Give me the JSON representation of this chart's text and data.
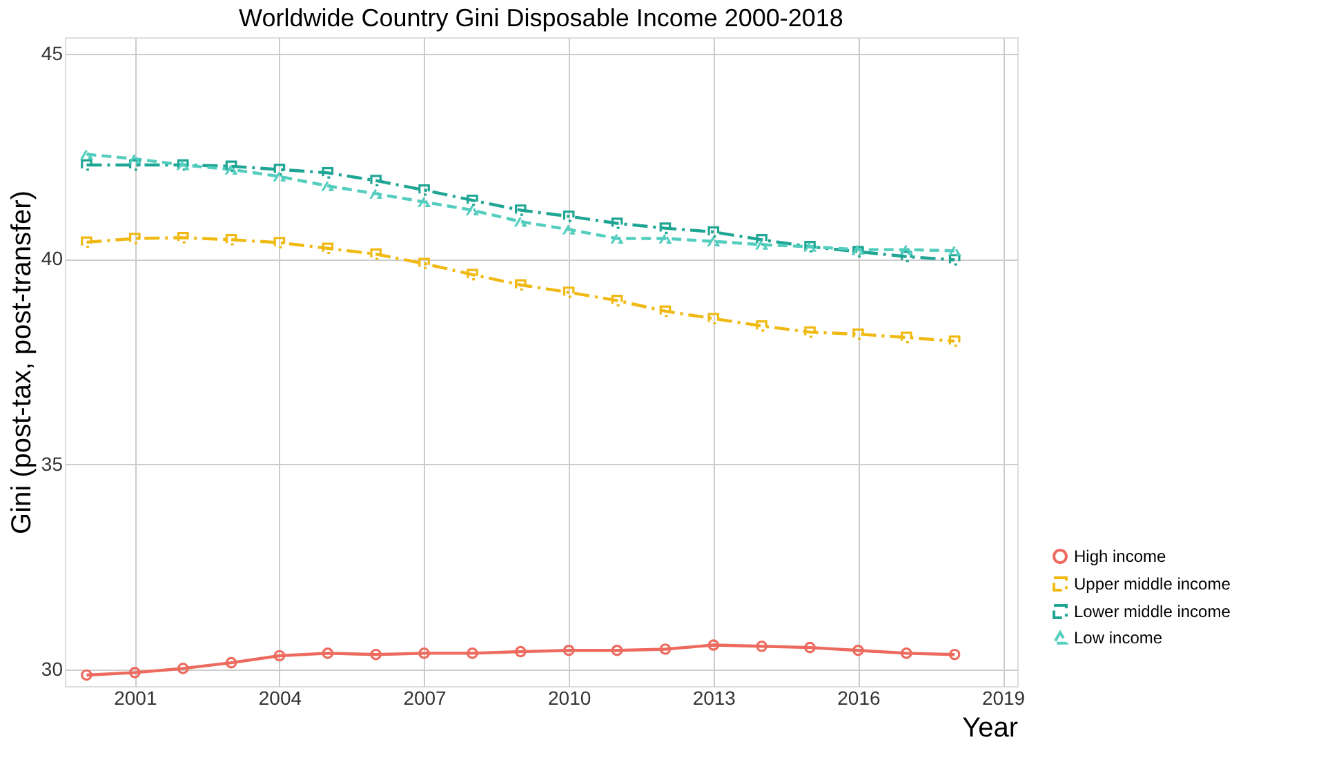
{
  "chart_data": {
    "type": "line",
    "title": "Worldwide Country Gini Disposable Income 2000-2018",
    "xlabel": "Year",
    "ylabel": "Gini (post-tax, post-transfer)",
    "x": [
      2000,
      2001,
      2002,
      2003,
      2004,
      2005,
      2006,
      2007,
      2008,
      2009,
      2010,
      2011,
      2012,
      2013,
      2014,
      2015,
      2016,
      2017,
      2018
    ],
    "series": [
      {
        "name": "High income",
        "color": "#ed6a5e",
        "marker": "circle",
        "line_style": "solid",
        "values": [
          29.87,
          29.93,
          30.03,
          30.17,
          30.34,
          30.4,
          30.37,
          30.4,
          30.4,
          30.44,
          30.47,
          30.47,
          30.5,
          30.6,
          30.57,
          30.54,
          30.47,
          30.4,
          30.37
        ]
      },
      {
        "name": "Upper middle income",
        "color": "#f0b912",
        "marker": "square",
        "line_style": "dashdot",
        "values": [
          40.41,
          40.5,
          40.52,
          40.47,
          40.4,
          40.26,
          40.12,
          39.89,
          39.62,
          39.37,
          39.19,
          38.99,
          38.73,
          38.55,
          38.37,
          38.22,
          38.17,
          38.09,
          38.0
        ]
      },
      {
        "name": "Lower middle income",
        "color": "#1fa594",
        "marker": "square",
        "line_style": "dashdot",
        "values": [
          42.29,
          42.29,
          42.29,
          42.26,
          42.18,
          42.1,
          41.91,
          41.68,
          41.43,
          41.19,
          41.04,
          40.87,
          40.75,
          40.66,
          40.47,
          40.3,
          40.18,
          40.06,
          39.98
        ]
      },
      {
        "name": "Low income",
        "color": "#52cdbe",
        "marker": "triangle",
        "line_style": "dashed",
        "values": [
          42.55,
          42.44,
          42.29,
          42.18,
          42.01,
          41.78,
          41.59,
          41.39,
          41.19,
          40.91,
          40.72,
          40.5,
          40.5,
          40.43,
          40.35,
          40.3,
          40.23,
          40.23,
          40.2
        ]
      }
    ],
    "xlim": [
      1999.55,
      2019.3
    ],
    "xticks": [
      2001,
      2004,
      2007,
      2010,
      2013,
      2016,
      2019
    ],
    "ylim": [
      29.6,
      45.4
    ],
    "yticks": [
      30,
      35,
      40,
      45
    ],
    "grid": true,
    "legend": "bottom right"
  }
}
